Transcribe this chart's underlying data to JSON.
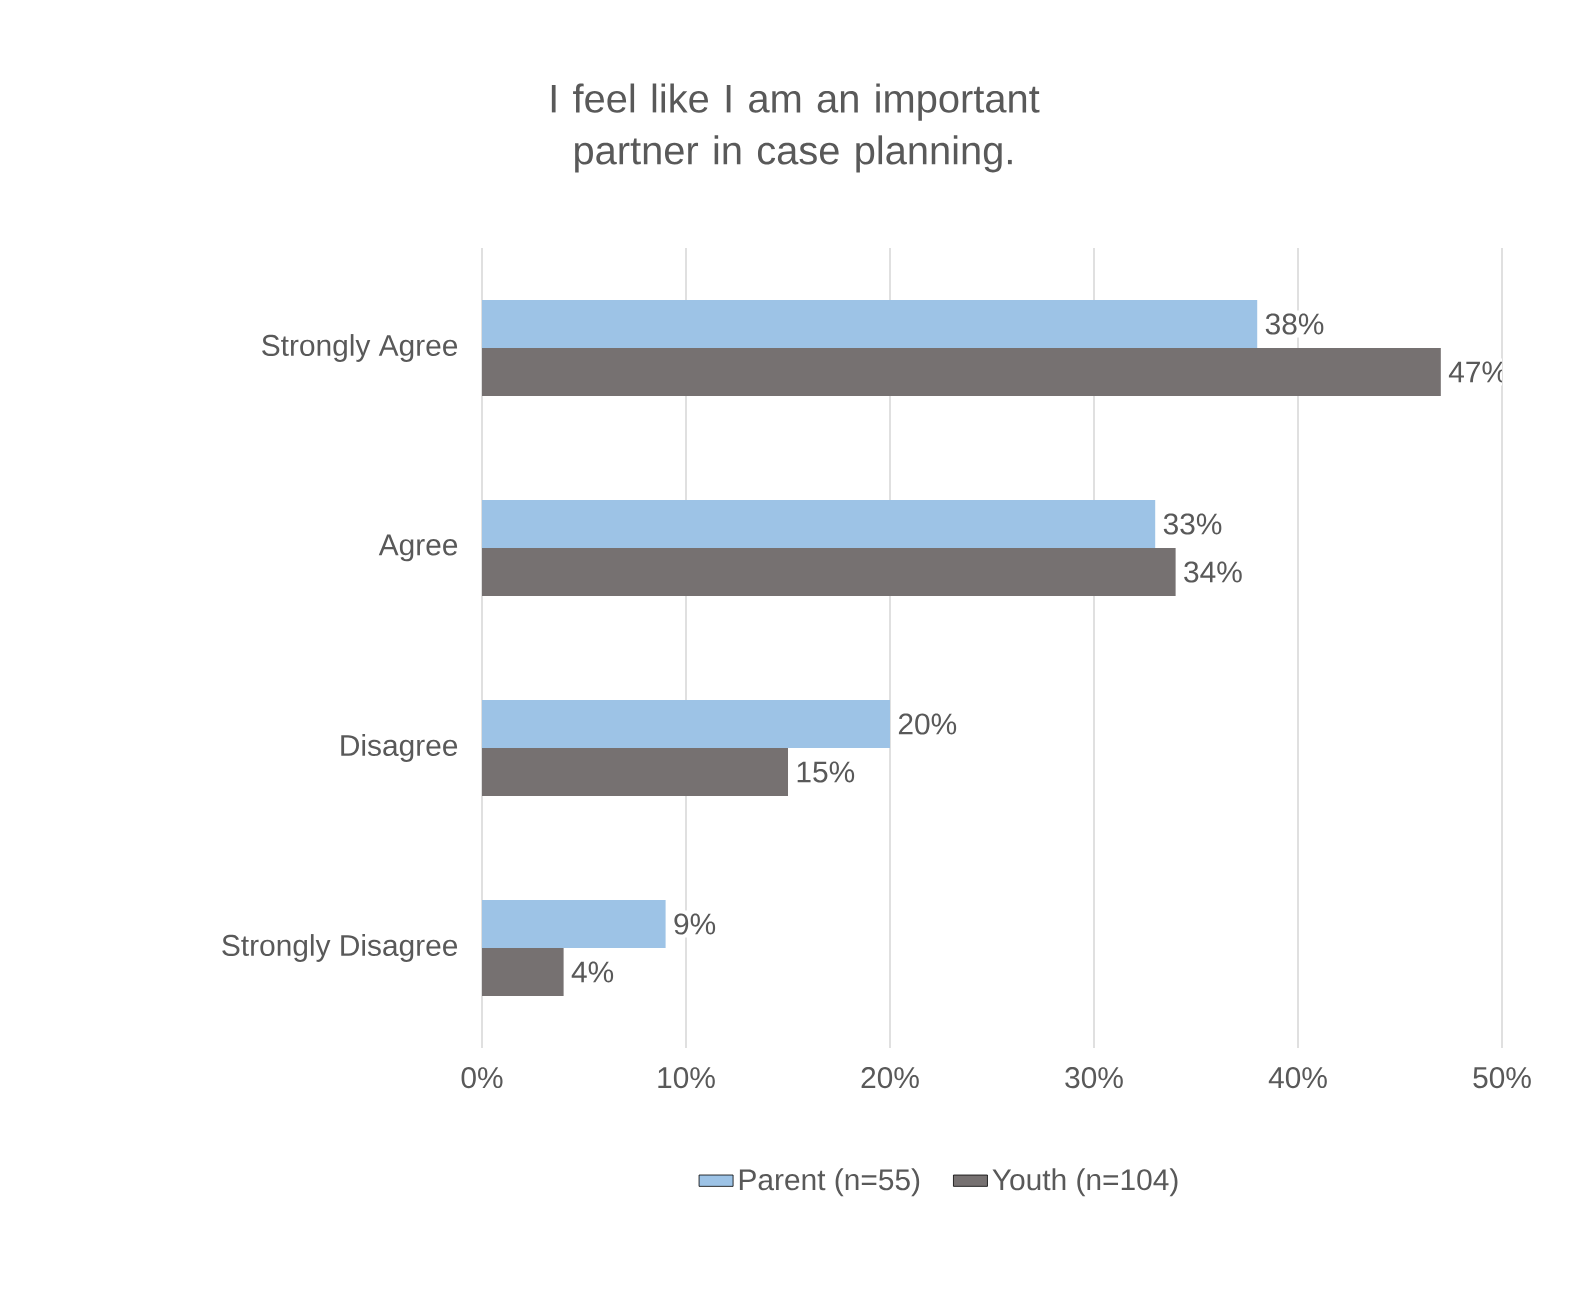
{
  "chart_data": {
    "type": "bar",
    "orientation": "horizontal",
    "title": "I feel like I am an important partner in case planning.",
    "categories": [
      "Strongly Agree",
      "Agree",
      "Disagree",
      "Strongly Disagree"
    ],
    "series": [
      {
        "name": "Parent (n=55)",
        "color": "#9dc3e6",
        "values": [
          38,
          33,
          20,
          9
        ],
        "value_labels": [
          "38%",
          "33%",
          "20%",
          "9%"
        ]
      },
      {
        "name": "Youth (n=104)",
        "color": "#767171",
        "values": [
          47,
          34,
          15,
          4
        ],
        "value_labels": [
          "47%",
          "34%",
          "15%",
          "4%"
        ]
      }
    ],
    "xlim": [
      0,
      50
    ],
    "xticks": [
      {
        "value": 0,
        "label": "0%"
      },
      {
        "value": 10,
        "label": "10%"
      },
      {
        "value": 20,
        "label": "20%"
      },
      {
        "value": 30,
        "label": "30%"
      },
      {
        "value": 40,
        "label": "40%"
      },
      {
        "value": 50,
        "label": "50%"
      }
    ],
    "grid": "x",
    "legend": "bottom"
  }
}
